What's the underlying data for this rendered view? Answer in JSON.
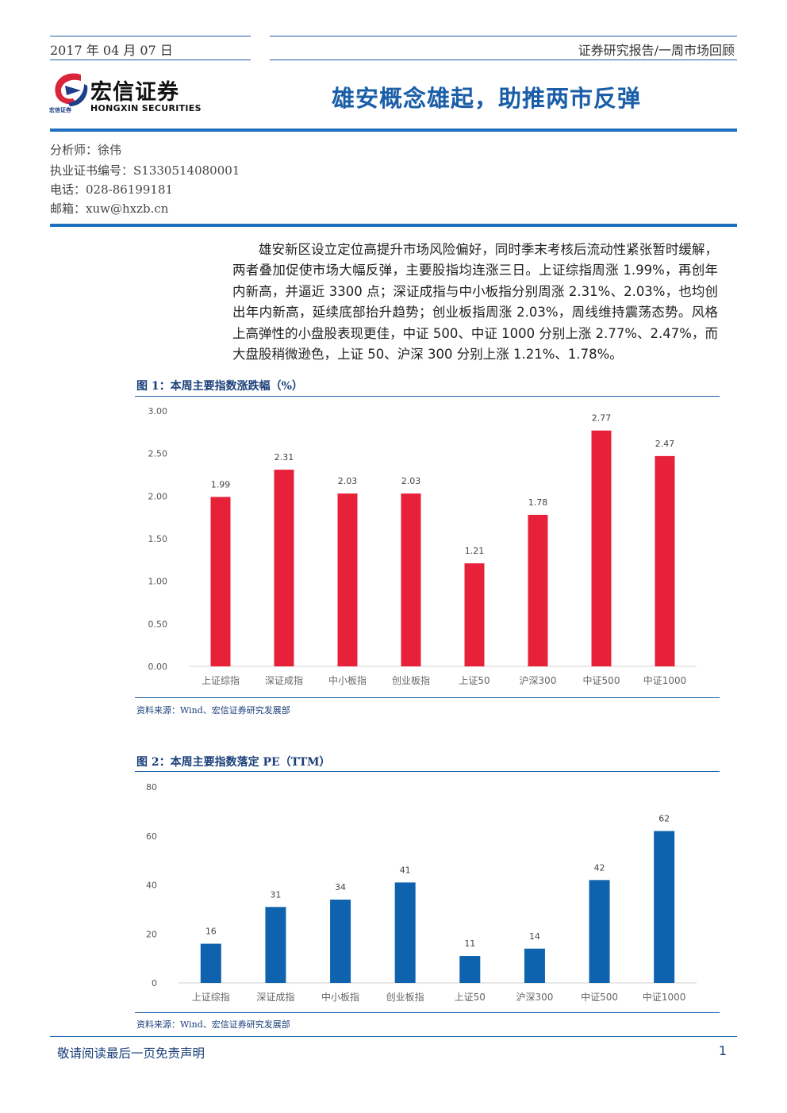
{
  "header": {
    "date": "2017 年 04 月 07 日",
    "report_type": "证券研究报告/一周市场回顾"
  },
  "logo": {
    "name_cn": "宏信证券",
    "name_en": "HONGXIN SECURITIES",
    "small_text": "宏信证券",
    "colors": {
      "red": "#d9243a",
      "blue": "#1d3f8a"
    }
  },
  "title": "雄安概念雄起，助推两市反弹",
  "analyst": {
    "name": "分析师：徐伟",
    "license": "执业证书编号：S1330514080001",
    "phone": "电话：028-86199181",
    "email": "邮箱：xuw@hxzb.cn"
  },
  "summary": "雄安新区设立定位高提升市场风险偏好，同时季末考核后流动性紧张暂时缓解，两者叠加促使市场大幅反弹，主要股指均连涨三日。上证综指周涨 1.99%，再创年内新高，并逼近 3300 点；深证成指与中小板指分别周涨 2.31%、2.03%，也均创出年内新高，延续底部抬升趋势；创业板指周涨 2.03%，周线维持震荡态势。风格上高弹性的小盘股表现更佳，中证 500、中证 1000 分别上涨 2.77%、2.47%，而大盘股稍微逊色，上证 50、沪深 300 分别上涨 1.21%、1.78%。",
  "figures": [
    {
      "title": "图 1：本周主要指数涨跌幅（%）",
      "source": "资料来源：Wind、宏信证券研究发展部"
    },
    {
      "title": "图 2：本周主要指数落定 PE（TTM）",
      "source": "资料来源：Wind、宏信证券研究发展部"
    }
  ],
  "chart_data": [
    {
      "type": "bar",
      "categories": [
        "上证综指",
        "深证成指",
        "中小板指",
        "创业板指",
        "上证50",
        "沪深300",
        "中证500",
        "中证1000"
      ],
      "values": [
        1.99,
        2.31,
        2.03,
        2.03,
        1.21,
        1.78,
        2.77,
        2.47
      ],
      "value_labels": [
        "1.99",
        "2.31",
        "2.03",
        "2.03",
        "1.21",
        "1.78",
        "2.77",
        "2.47"
      ],
      "yticks": [
        "0.00",
        "0.50",
        "1.00",
        "1.50",
        "2.00",
        "2.50",
        "3.00"
      ],
      "ylim": [
        0,
        3
      ],
      "color": "#e8213b",
      "grid": false
    },
    {
      "type": "bar",
      "categories": [
        "上证综指",
        "深证成指",
        "中小板指",
        "创业板指",
        "上证50",
        "沪深300",
        "中证500",
        "中证1000"
      ],
      "values": [
        16,
        31,
        34,
        41,
        11,
        14,
        42,
        62
      ],
      "value_labels": [
        "16",
        "31",
        "34",
        "41",
        "11",
        "14",
        "42",
        "62"
      ],
      "yticks": [
        "0",
        "20",
        "40",
        "60",
        "80"
      ],
      "ylim": [
        0,
        80
      ],
      "color": "#0f62ad",
      "grid": false
    }
  ],
  "footer": {
    "disclaimer": "敬请阅读最后一页免责声明",
    "page_number": "1"
  }
}
